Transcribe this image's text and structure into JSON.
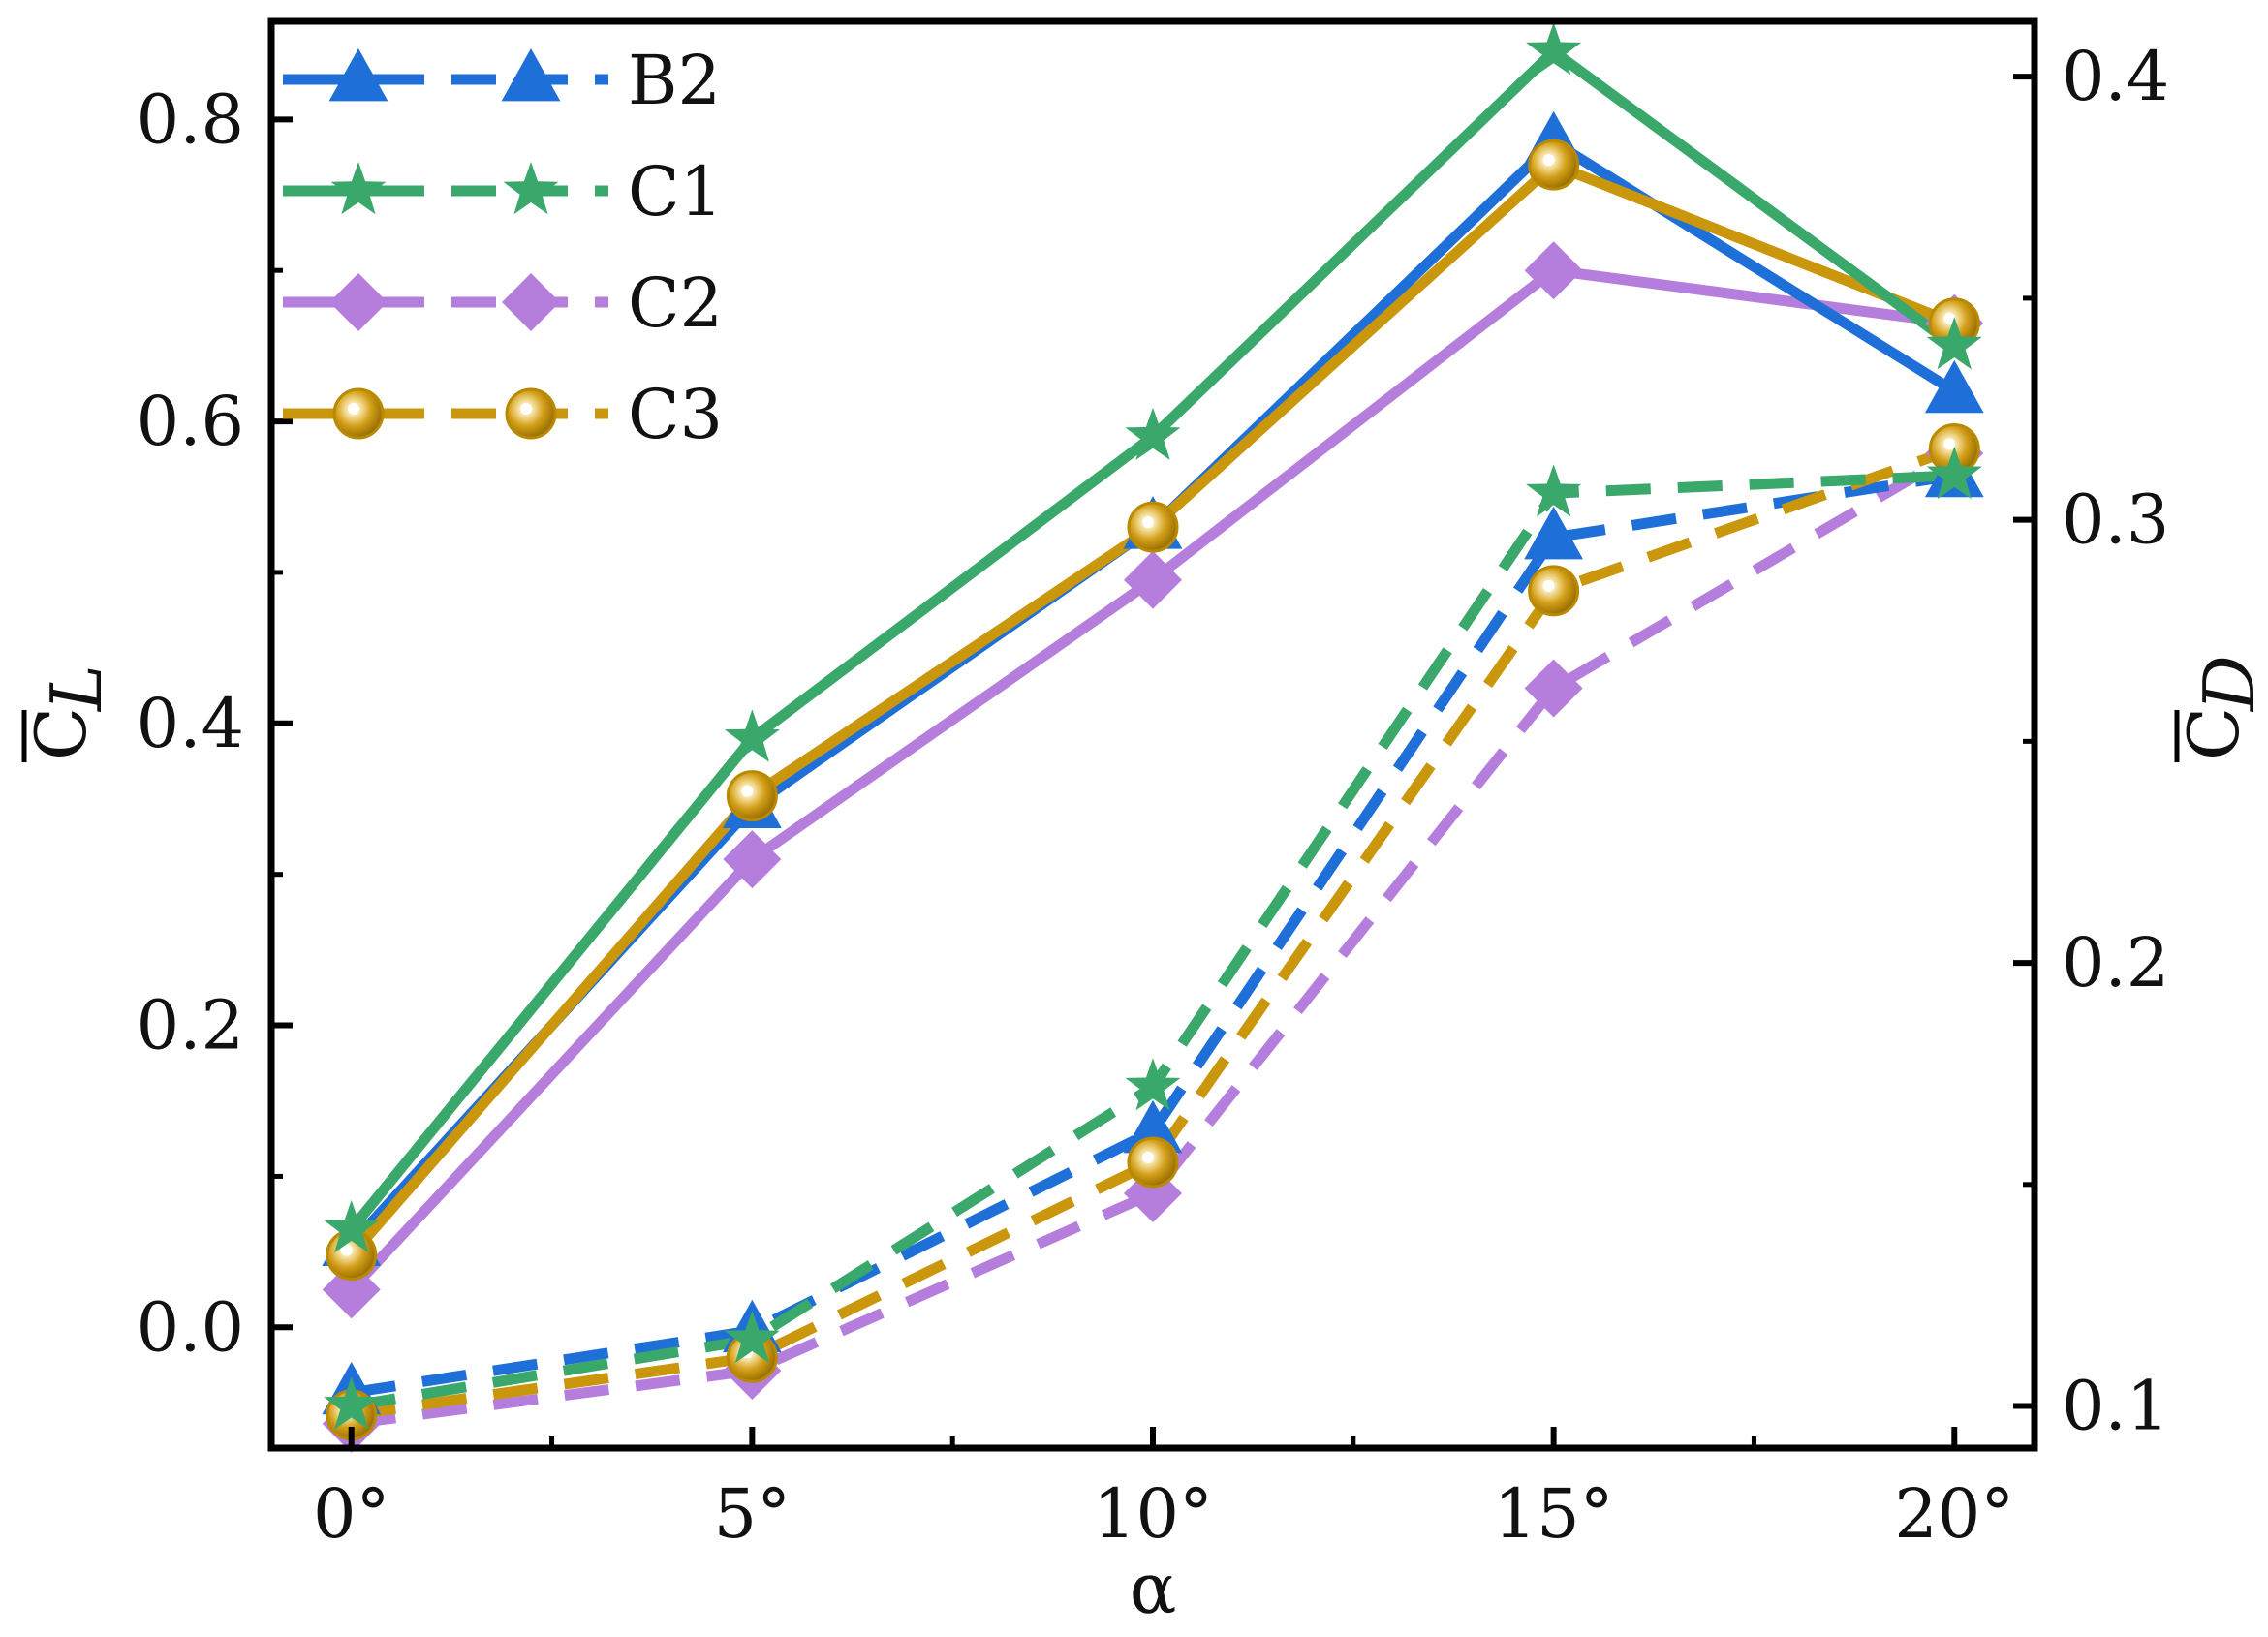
{
  "chart_data": {
    "type": "line",
    "x": [
      0,
      5,
      10,
      15,
      20
    ],
    "xlabel": "α",
    "xtick_labels": [
      "0°",
      "5°",
      "10°",
      "15°",
      "20°"
    ],
    "xlim": [
      -1,
      21
    ],
    "left_axis": {
      "label_main": "C",
      "label_sub": "L",
      "ylim": [
        -0.08,
        0.865
      ],
      "ticks": [
        0.0,
        0.2,
        0.4,
        0.6,
        0.8
      ],
      "tick_labels": [
        "0.0",
        "0.2",
        "0.4",
        "0.6",
        "0.8"
      ]
    },
    "right_axis": {
      "label_main": "C",
      "label_sub": "D",
      "ylim": [
        0.0905,
        0.4125
      ],
      "ticks": [
        0.1,
        0.2,
        0.3,
        0.4
      ],
      "tick_labels": [
        "0.1",
        "0.2",
        "0.3",
        "0.4"
      ]
    },
    "series": [
      {
        "name": "B2",
        "color": "#1f6fd8",
        "marker": "triangle",
        "lift": [
          0.055,
          0.345,
          0.53,
          0.785,
          0.62
        ],
        "drag": [
          0.103,
          0.117,
          0.162,
          0.296,
          0.31
        ]
      },
      {
        "name": "C1",
        "color": "#3aa86b",
        "marker": "star",
        "lift": [
          0.065,
          0.39,
          0.59,
          0.845,
          0.65
        ],
        "drag": [
          0.1,
          0.115,
          0.172,
          0.306,
          0.31
        ]
      },
      {
        "name": "C2",
        "color": "#b57edc",
        "marker": "diamond",
        "lift": [
          0.025,
          0.31,
          0.495,
          0.7,
          0.665
        ],
        "drag": [
          0.096,
          0.108,
          0.148,
          0.262,
          0.315
        ]
      },
      {
        "name": "C3",
        "color": "#c9960c",
        "marker": "sphere",
        "lift": [
          0.048,
          0.352,
          0.53,
          0.77,
          0.665
        ],
        "drag": [
          0.098,
          0.111,
          0.155,
          0.284,
          0.316
        ]
      }
    ],
    "legend_position": "top-left"
  }
}
